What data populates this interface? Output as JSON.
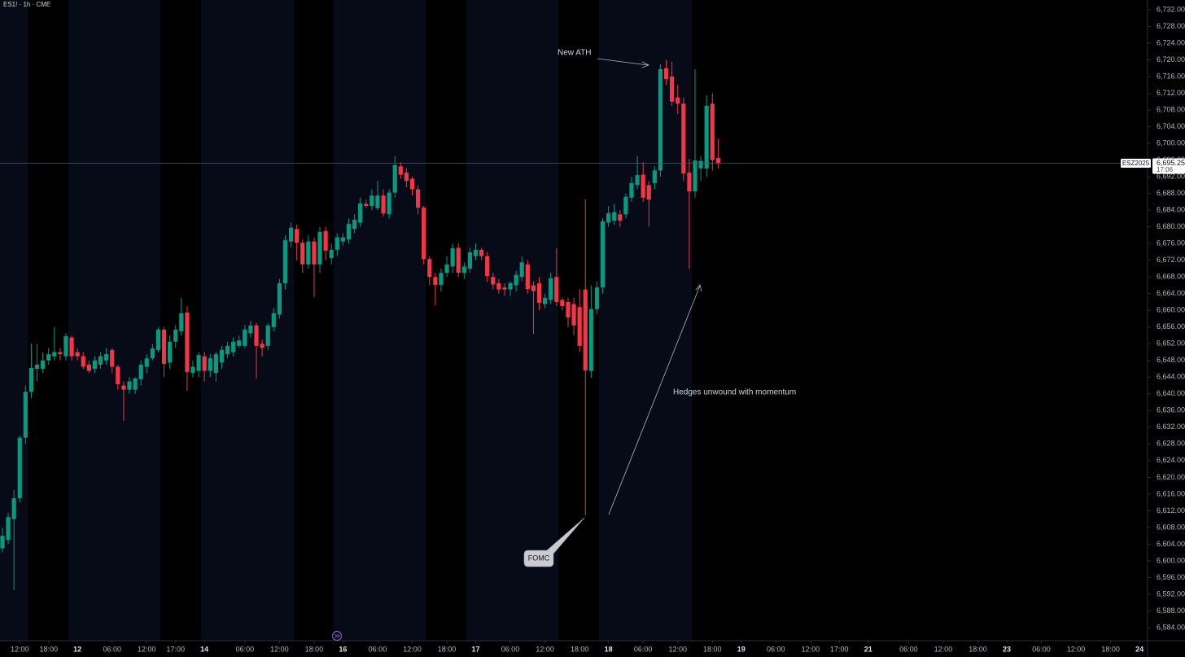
{
  "chart_data": {
    "type": "candlestick",
    "title": "ES1! · 1h · CME",
    "symbol": "ESZ2025",
    "last_price": {
      "value": 6695.25,
      "label": "6,695.25"
    },
    "countdown": "17:06",
    "up_color": "#089981",
    "down_color": "#f23645",
    "open": [
      6603,
      6605,
      6610,
      6615,
      6629.5,
      6640.5,
      6646,
      6646,
      6648,
      6649,
      6650,
      6649,
      6653.5,
      6650,
      6649,
      6647,
      6646,
      6647,
      6648,
      6650.5,
      6646.5,
      6642,
      6641,
      6641,
      6643.5,
      6646.5,
      6648.5,
      6650.5,
      6655.4,
      6647.5,
      6652.5,
      6655,
      6659.5,
      6645,
      6645.5,
      6649,
      6645.5,
      6645,
      6647.5,
      6649.5,
      6650,
      6651.5,
      6651.5,
      6654.5,
      6656.4,
      6652,
      6651.5,
      6656,
      6659,
      6666.5,
      6676.5,
      6679.5,
      6676.2,
      6671,
      6676.5,
      6671,
      6679,
      6672.5,
      6674.5,
      6676.5,
      6677,
      6679.5,
      6681,
      6685.5,
      6685,
      6684.5,
      6687.5,
      6683,
      6688.2,
      6694.5,
      6693,
      6691.5,
      6689,
      6684.6,
      6672.3,
      6668,
      6666.1,
      6669,
      6670.5,
      6675,
      6669,
      6670,
      6673,
      6674.5,
      6673,
      6668,
      6666.5,
      6665.5,
      6665,
      6666,
      6668,
      6671,
      6666,
      6666.5,
      6661.5,
      6662.5,
      6668,
      6662.5,
      6662,
      6661.5,
      6660.8,
      6665,
      6645.5,
      6660.3,
      6665.5,
      6681,
      6681.5,
      6683,
      6683,
      6687,
      6690,
      6692.5,
      6690,
      6690.5,
      6693.5,
      6718,
      6716,
      6711,
      6709.5,
      6693,
      6688.5,
      6694,
      6694,
      6709.5,
      6696.5
    ],
    "high": [
      6608,
      6611.5,
      6617,
      6630,
      6642,
      6652,
      6652,
      6650,
      6651,
      6656,
      6651,
      6654.5,
      6654,
      6651,
      6650,
      6648,
      6649,
      6650,
      6651,
      6651,
      6647,
      6643,
      6644,
      6644,
      6648,
      6649.5,
      6652,
      6656,
      6656,
      6654,
      6656.5,
      6663,
      6661,
      6648,
      6650,
      6650,
      6649.5,
      6650,
      6651.5,
      6652.5,
      6653.5,
      6654,
      6656.5,
      6657.5,
      6657,
      6653,
      6657,
      6660.5,
      6667.5,
      6678,
      6681,
      6680.5,
      6677,
      6678,
      6677.5,
      6680,
      6680,
      6676,
      6678.5,
      6678.5,
      6682,
      6683,
      6687,
      6686.5,
      6689,
      6691,
      6689,
      6689,
      6697,
      6695.5,
      6694,
      6692,
      6690,
      6685,
      6673,
      6669,
      6670,
      6673,
      6676,
      6676,
      6671.5,
      6675,
      6676,
      6675,
      6674,
      6669,
      6667.5,
      6666.5,
      6667,
      6669.5,
      6673,
      6672,
      6667,
      6668,
      6664,
      6669,
      6674.9,
      6663,
      6663,
      6663,
      6665.1,
      6686.6,
      6666,
      6667,
      6682,
      6685,
      6685.5,
      6684,
      6688,
      6692,
      6697,
      6695.5,
      6691,
      6694.5,
      6719,
      6720,
      6719.5,
      6714,
      6711,
      6696.3,
      6717.8,
      6697,
      6711.5,
      6712,
      6701
    ],
    "low": [
      6602,
      6604,
      6593,
      6614,
      6628,
      6639,
      6643,
      6645,
      6647,
      6648,
      6648,
      6648,
      6648,
      6648,
      6646,
      6645,
      6645,
      6646,
      6647,
      6645,
      6641,
      6633.5,
      6640,
      6640,
      6642,
      6645,
      6648,
      6650,
      6644,
      6646,
      6651,
      6654,
      6640.7,
      6644,
      6644,
      6643,
      6644,
      6643,
      6646,
      6648.5,
      6649,
      6651,
      6651,
      6653.5,
      6643.7,
      6649,
      6650.5,
      6655,
      6658,
      6665,
      6675,
      6672,
      6669,
      6670,
      6663.2,
      6669,
      6672,
      6671,
      6673,
      6675.5,
      6676,
      6678.5,
      6680,
      6684.5,
      6684,
      6684,
      6682.5,
      6682,
      6687,
      6691.5,
      6689.5,
      6687.5,
      6683,
      6671,
      6666,
      6661.2,
      6664.5,
      6668,
      6669,
      6668,
      6667.5,
      6669,
      6672,
      6672,
      6666.8,
      6665,
      6664,
      6663.5,
      6663.5,
      6664.5,
      6667,
      6664,
      6654.4,
      6660,
      6660.5,
      6661.5,
      6661,
      6660,
      6656,
      6654,
      6650,
      6610.9,
      6643.8,
      6659,
      6664,
      6680,
      6680.5,
      6680,
      6682,
      6686,
      6689,
      6686,
      6680.1,
      6689,
      6692,
      6714,
      6709,
      6707,
      6691,
      6670,
      6687,
      6691,
      6692,
      6693.5,
      6694
    ],
    "close": [
      6606,
      6610.5,
      6615,
      6629.5,
      6640.5,
      6646.2,
      6647,
      6648,
      6649.5,
      6650,
      6649.5,
      6653.8,
      6649,
      6649,
      6646.5,
      6645.5,
      6648,
      6649,
      6649.5,
      6646.5,
      6642.3,
      6641,
      6643,
      6643.7,
      6647,
      6648.5,
      6650.9,
      6655.4,
      6647.2,
      6652.5,
      6655.4,
      6659.3,
      6645.2,
      6646.5,
      6649.3,
      6645.5,
      6648.5,
      6649.5,
      6650.5,
      6651.5,
      6652.5,
      6652.8,
      6655.4,
      6656.4,
      6651.5,
      6651,
      6656.4,
      6659.3,
      6666.5,
      6676.8,
      6679.8,
      6676.2,
      6671,
      6676.5,
      6671,
      6678.8,
      6674.3,
      6674.5,
      6677.5,
      6677.5,
      6680.7,
      6681.7,
      6685.6,
      6685,
      6687.5,
      6687.5,
      6683.2,
      6688.2,
      6694.8,
      6692.5,
      6691,
      6689,
      6684.6,
      6672.3,
      6668,
      6666.1,
      6669,
      6671,
      6674.9,
      6669,
      6670.5,
      6673.9,
      6674.5,
      6673,
      6668.2,
      6666.2,
      6665,
      6665,
      6666.5,
      6668.5,
      6671.5,
      6665.1,
      6664.6,
      6661.8,
      6663,
      6667.7,
      6662,
      6661,
      6658.3,
      6656.4,
      6651.5,
      6645.6,
      6660.3,
      6665.5,
      6681.3,
      6683.3,
      6683.5,
      6681.5,
      6687.2,
      6690.5,
      6692.4,
      6687,
      6686.5,
      6693.5,
      6717.8,
      6715.4,
      6710,
      6709.5,
      6692.8,
      6688.5,
      6695.9,
      6695.8,
      6709,
      6696,
      6695.25
    ],
    "xlim": [
      -0.42,
      198.4
    ],
    "xticks": [
      {
        "value": 3,
        "label": "12:00"
      },
      {
        "value": 8,
        "label": "18:00"
      },
      {
        "value": 13,
        "label": "12"
      },
      {
        "value": 19,
        "label": "06:00"
      },
      {
        "value": 25,
        "label": "12:00"
      },
      {
        "value": 30,
        "label": "17:00"
      },
      {
        "value": 35,
        "label": "14"
      },
      {
        "value": 42,
        "label": "06:00"
      },
      {
        "value": 48,
        "label": "12:00"
      },
      {
        "value": 54,
        "label": "18:00"
      },
      {
        "value": 59,
        "label": "16"
      },
      {
        "value": 65,
        "label": "06:00"
      },
      {
        "value": 71,
        "label": "12:00"
      },
      {
        "value": 77,
        "label": "18:00"
      },
      {
        "value": 82,
        "label": "17"
      },
      {
        "value": 88,
        "label": "06:00"
      },
      {
        "value": 94,
        "label": "12:00"
      },
      {
        "value": 100,
        "label": "18:00"
      },
      {
        "value": 105,
        "label": "18"
      },
      {
        "value": 111,
        "label": "06:00"
      },
      {
        "value": 117,
        "label": "12:00"
      },
      {
        "value": 123,
        "label": "18:00"
      },
      {
        "value": 128,
        "label": "19"
      },
      {
        "value": 134,
        "label": "06:00"
      },
      {
        "value": 140,
        "label": "12:00"
      },
      {
        "value": 145,
        "label": "17:00"
      },
      {
        "value": 150,
        "label": "21"
      },
      {
        "value": 157,
        "label": "06:00"
      },
      {
        "value": 163,
        "label": "12:00"
      },
      {
        "value": 169,
        "label": "18:00"
      },
      {
        "value": 174,
        "label": "23"
      },
      {
        "value": 180,
        "label": "06:00"
      },
      {
        "value": 186,
        "label": "12:00"
      },
      {
        "value": 192,
        "label": "18:00"
      },
      {
        "value": 197,
        "label": "24"
      }
    ],
    "ylim": [
      6580.88,
      6734.34
    ],
    "yticks": [
      {
        "value": 6584,
        "label": "6,584.00"
      },
      {
        "value": 6588,
        "label": "6,588.00"
      },
      {
        "value": 6592,
        "label": "6,592.00"
      },
      {
        "value": 6596,
        "label": "6,596.00"
      },
      {
        "value": 6600,
        "label": "6,600.00"
      },
      {
        "value": 6604,
        "label": "6,604.00"
      },
      {
        "value": 6608,
        "label": "6,608.00"
      },
      {
        "value": 6612,
        "label": "6,612.00"
      },
      {
        "value": 6616,
        "label": "6,616.00"
      },
      {
        "value": 6620,
        "label": "6,620.00"
      },
      {
        "value": 6624,
        "label": "6,624.00"
      },
      {
        "value": 6628,
        "label": "6,628.00"
      },
      {
        "value": 6632,
        "label": "6,632.00"
      },
      {
        "value": 6636,
        "label": "6,636.00"
      },
      {
        "value": 6640,
        "label": "6,640.00"
      },
      {
        "value": 6644,
        "label": "6,644.00"
      },
      {
        "value": 6648,
        "label": "6,648.00"
      },
      {
        "value": 6652,
        "label": "6,652.00"
      },
      {
        "value": 6656,
        "label": "6,656.00"
      },
      {
        "value": 6660,
        "label": "6,660.00"
      },
      {
        "value": 6664,
        "label": "6,664.00"
      },
      {
        "value": 6668,
        "label": "6,668.00"
      },
      {
        "value": 6672,
        "label": "6,672.00"
      },
      {
        "value": 6676,
        "label": "6,676.00"
      },
      {
        "value": 6680,
        "label": "6,680.00"
      },
      {
        "value": 6684,
        "label": "6,684.00"
      },
      {
        "value": 6688,
        "label": "6,688.00"
      },
      {
        "value": 6692,
        "label": "6,692.00"
      },
      {
        "value": 6696,
        "label": "6,696.00"
      },
      {
        "value": 6700,
        "label": "6,700.00"
      },
      {
        "value": 6704,
        "label": "6,704.00"
      },
      {
        "value": 6708,
        "label": "6,708.00"
      },
      {
        "value": 6712,
        "label": "6,712.00"
      },
      {
        "value": 6716,
        "label": "6,716.00"
      },
      {
        "value": 6720,
        "label": "6,720.00"
      },
      {
        "value": 6724,
        "label": "6,724.00"
      },
      {
        "value": 6728,
        "label": "6,728.00"
      },
      {
        "value": 6732,
        "label": "6,732.00"
      }
    ],
    "annotations": [
      {
        "text": "New ATH"
      },
      {
        "text": "Hedges unwound with momentum"
      },
      {
        "text": "FOMC"
      }
    ]
  }
}
